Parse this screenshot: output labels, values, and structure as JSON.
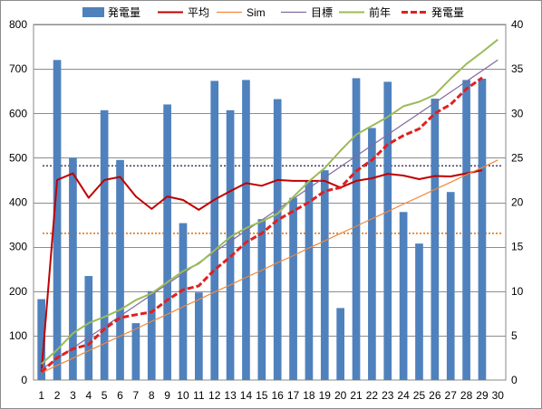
{
  "chart_data": {
    "type": "bar",
    "title": "",
    "xlabel": "",
    "ylabel": "",
    "ylim": [
      0,
      800
    ],
    "y2lim": [
      0,
      40
    ],
    "grid": true,
    "legend_position": "top",
    "x": [
      1,
      2,
      3,
      4,
      5,
      6,
      7,
      8,
      9,
      10,
      11,
      12,
      13,
      14,
      15,
      16,
      17,
      18,
      19,
      20,
      21,
      22,
      23,
      24,
      25,
      26,
      27,
      28,
      29,
      30
    ],
    "y_ticks": [
      0,
      100,
      200,
      300,
      400,
      500,
      600,
      700,
      800
    ],
    "y2_ticks": [
      0,
      5,
      10,
      15,
      20,
      25,
      30,
      35,
      40
    ],
    "series": [
      {
        "name": "発電量",
        "kind": "bar",
        "axis": "left",
        "color": "#4f81bd",
        "values": [
          182,
          720,
          500,
          234,
          607,
          495,
          128,
          200,
          620,
          353,
          197,
          673,
          607,
          675,
          362,
          632,
          410,
          447,
          472,
          162,
          679,
          567,
          671,
          378,
          307,
          633,
          423,
          675,
          678,
          null
        ]
      },
      {
        "name": "平均",
        "kind": "line",
        "axis": "left",
        "color": "#c00000",
        "values": [
          18,
          450,
          465,
          410,
          450,
          457,
          413,
          385,
          413,
          405,
          383,
          406,
          425,
          443,
          437,
          450,
          448,
          448,
          448,
          433,
          448,
          454,
          464,
          460,
          452,
          459,
          458,
          465,
          472,
          null
        ]
      },
      {
        "name": "Sim",
        "kind": "line",
        "axis": "left",
        "color": "#f0883c",
        "values": [
          16,
          33,
          49,
          66,
          82,
          99,
          115,
          132,
          148,
          165,
          181,
          198,
          214,
          231,
          247,
          264,
          280,
          297,
          313,
          330,
          346,
          363,
          379,
          396,
          412,
          429,
          445,
          462,
          478,
          495
        ]
      },
      {
        "name": "目標",
        "kind": "line",
        "axis": "left",
        "color": "#7f6aa0",
        "values": [
          24,
          48,
          72,
          96,
          120,
          144,
          168,
          192,
          216,
          240,
          264,
          288,
          312,
          336,
          360,
          384,
          408,
          432,
          456,
          480,
          504,
          528,
          552,
          576,
          600,
          624,
          648,
          672,
          696,
          720
        ]
      },
      {
        "name": "前年",
        "kind": "line",
        "axis": "left",
        "color": "#9bbb59",
        "values": [
          36,
          68,
          105,
          128,
          142,
          158,
          180,
          195,
          220,
          245,
          262,
          292,
          322,
          342,
          357,
          374,
          412,
          447,
          477,
          516,
          552,
          572,
          592,
          616,
          626,
          642,
          678,
          711,
          738,
          766
        ]
      },
      {
        "name": "発電量",
        "kind": "line-dashed",
        "axis": "left",
        "color": "#e02020",
        "values": [
          18,
          50,
          70,
          80,
          115,
          140,
          147,
          153,
          180,
          203,
          212,
          248,
          277,
          310,
          330,
          360,
          380,
          400,
          425,
          433,
          470,
          495,
          530,
          550,
          565,
          600,
          620,
          655,
          680,
          null
        ]
      }
    ],
    "reference_lines": [
      {
        "axis": "left",
        "value": 482,
        "color": "#404060",
        "style": "dotted"
      },
      {
        "axis": "left",
        "value": 330,
        "color": "#e86a00",
        "style": "dotted"
      }
    ]
  }
}
